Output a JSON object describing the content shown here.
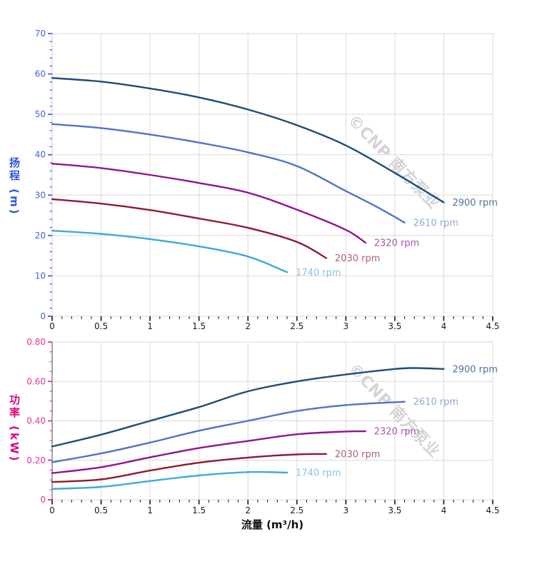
{
  "watermark": {
    "text": "©CNP 南方泵业",
    "color": "#d4d4d8",
    "angle_deg": 46
  },
  "chart_data": [
    {
      "type": "line",
      "title": "",
      "xlabel": "流量 (m³/h)",
      "ylabel": "扬程 (m)",
      "ylabel_color": "#2f55dd",
      "xlim": [
        0,
        4.5
      ],
      "ylim": [
        0,
        70
      ],
      "x_major": 0.5,
      "x_minor": 0.1,
      "y_major": 10,
      "y_minor": 2,
      "x_tick_labels": [
        "0",
        "0.5",
        "1",
        "1.5",
        "2",
        "2.5",
        "3",
        "3.5",
        "4",
        "4.5"
      ],
      "y_tick_labels": [
        "0",
        "10",
        "20",
        "30",
        "40",
        "50",
        "60",
        "70"
      ],
      "y_axis_color": "#4164dc",
      "x_axis_color": "#2b2b2b",
      "grid": true,
      "grid_color": "#d9d9d9",
      "axis_line_color": "#c9cdd6",
      "legend_position": "end-of-line",
      "series": [
        {
          "name": "2900 rpm",
          "color": "#1b4e7a",
          "label_color": "#4e719d",
          "points": [
            [
              0,
              59
            ],
            [
              0.5,
              58.1
            ],
            [
              1,
              56.4
            ],
            [
              1.5,
              54.2
            ],
            [
              2,
              51.2
            ],
            [
              2.5,
              47.3
            ],
            [
              3,
              42.3
            ],
            [
              3.5,
              35.5
            ],
            [
              4,
              28.2
            ]
          ]
        },
        {
          "name": "2610 rpm",
          "color": "#4d74c8",
          "label_color": "#90a7dc",
          "points": [
            [
              0,
              47.6
            ],
            [
              0.5,
              46.6
            ],
            [
              1,
              45
            ],
            [
              1.5,
              43
            ],
            [
              2,
              40.6
            ],
            [
              2.5,
              37.2
            ],
            [
              3,
              31
            ],
            [
              3.3,
              27.3
            ],
            [
              3.6,
              23.2
            ]
          ]
        },
        {
          "name": "2320 rpm",
          "color": "#901590",
          "label_color": "#aa58ae",
          "points": [
            [
              0,
              37.8
            ],
            [
              0.5,
              36.7
            ],
            [
              1,
              35
            ],
            [
              1.5,
              33
            ],
            [
              2,
              30.6
            ],
            [
              2.5,
              26.4
            ],
            [
              3,
              21.4
            ],
            [
              3.2,
              18.2
            ]
          ]
        },
        {
          "name": "2030 rpm",
          "color": "#8e1c30",
          "label_color": "#ae6075",
          "points": [
            [
              0,
              29
            ],
            [
              0.5,
              27.9
            ],
            [
              1,
              26.3
            ],
            [
              1.5,
              24.2
            ],
            [
              2,
              21.9
            ],
            [
              2.5,
              18.4
            ],
            [
              2.8,
              14.4
            ]
          ]
        },
        {
          "name": "1740 rpm",
          "color": "#3fa9dd",
          "label_color": "#84c6ea",
          "points": [
            [
              0,
              21.2
            ],
            [
              0.5,
              20.4
            ],
            [
              1,
              19.1
            ],
            [
              1.5,
              17.3
            ],
            [
              2,
              14.8
            ],
            [
              2.4,
              10.9
            ]
          ]
        }
      ]
    },
    {
      "type": "line",
      "title": "",
      "xlabel": "流量 (m³/h)",
      "ylabel": "功率 (kW)",
      "ylabel_color": "#d30b80",
      "xlim": [
        0,
        4.5
      ],
      "ylim": [
        0,
        0.8
      ],
      "x_major": 0.5,
      "x_minor": 0.1,
      "y_major": 0.2,
      "y_minor": 0.05,
      "x_tick_labels": [
        "0",
        "0.5",
        "1",
        "1.5",
        "2",
        "2.5",
        "3",
        "3.5",
        "4",
        "4.5"
      ],
      "y_tick_labels": [
        "0",
        "0.20",
        "0.40",
        "0.60",
        "0.80"
      ],
      "y_axis_color": "#e0358e",
      "x_axis_color": "#2b2b2b",
      "grid": true,
      "grid_color": "#d9d9d9",
      "axis_line_color": "#474747",
      "legend_position": "end-of-line",
      "series": [
        {
          "name": "2900 rpm",
          "color": "#1b4e7a",
          "label_color": "#4e719d",
          "points": [
            [
              0,
              0.27
            ],
            [
              0.5,
              0.33
            ],
            [
              1,
              0.4
            ],
            [
              1.5,
              0.47
            ],
            [
              2,
              0.55
            ],
            [
              2.5,
              0.6
            ],
            [
              3,
              0.635
            ],
            [
              3.5,
              0.663
            ],
            [
              3.7,
              0.668
            ],
            [
              4,
              0.663
            ]
          ]
        },
        {
          "name": "2610 rpm",
          "color": "#4d74c8",
          "label_color": "#90a7dc",
          "points": [
            [
              0,
              0.19
            ],
            [
              0.5,
              0.235
            ],
            [
              1,
              0.29
            ],
            [
              1.5,
              0.35
            ],
            [
              2,
              0.4
            ],
            [
              2.5,
              0.45
            ],
            [
              3,
              0.48
            ],
            [
              3.6,
              0.497
            ]
          ]
        },
        {
          "name": "2320 rpm",
          "color": "#901590",
          "label_color": "#aa58ae",
          "points": [
            [
              0,
              0.135
            ],
            [
              0.5,
              0.165
            ],
            [
              1,
              0.215
            ],
            [
              1.5,
              0.262
            ],
            [
              2,
              0.298
            ],
            [
              2.5,
              0.332
            ],
            [
              3,
              0.346
            ],
            [
              3.2,
              0.347
            ]
          ]
        },
        {
          "name": "2030 rpm",
          "color": "#8e1c30",
          "label_color": "#ae6075",
          "points": [
            [
              0,
              0.09
            ],
            [
              0.5,
              0.103
            ],
            [
              1,
              0.148
            ],
            [
              1.5,
              0.188
            ],
            [
              2,
              0.214
            ],
            [
              2.5,
              0.23
            ],
            [
              2.8,
              0.232
            ]
          ]
        },
        {
          "name": "1740 rpm",
          "color": "#3fa9dd",
          "label_color": "#84c6ea",
          "points": [
            [
              0,
              0.055
            ],
            [
              0.5,
              0.065
            ],
            [
              1,
              0.095
            ],
            [
              1.5,
              0.123
            ],
            [
              2,
              0.14
            ],
            [
              2.4,
              0.138
            ]
          ]
        }
      ]
    }
  ]
}
